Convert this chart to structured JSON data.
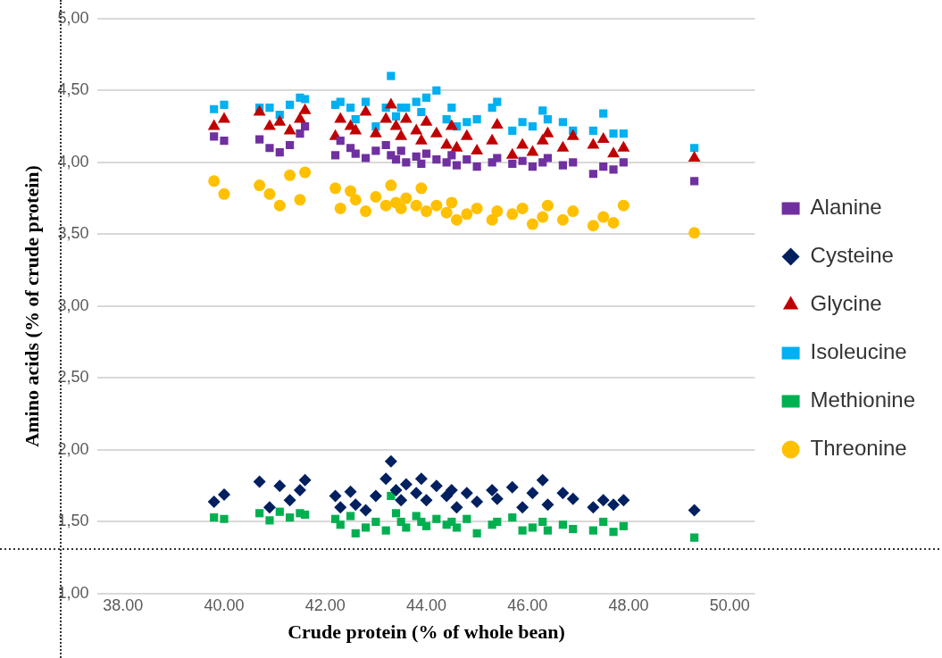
{
  "chart_data": {
    "type": "scatter",
    "xlabel": "Crude protein (% of whole bean)",
    "ylabel": "Amino acids (% of crude protein)",
    "x": [
      39.8,
      40.0,
      40.7,
      40.9,
      41.1,
      41.3,
      41.5,
      41.6,
      42.2,
      42.3,
      42.5,
      42.6,
      42.8,
      43.0,
      43.2,
      43.3,
      43.4,
      43.5,
      43.6,
      43.8,
      43.9,
      44.0,
      44.2,
      44.4,
      44.5,
      44.6,
      44.8,
      45.0,
      45.3,
      45.4,
      45.7,
      45.9,
      46.1,
      46.3,
      46.4,
      46.7,
      46.9,
      47.3,
      47.5,
      47.7,
      47.9,
      49.3
    ],
    "series": [
      {
        "name": "Alanine",
        "color": "#7030a0",
        "marker": "square",
        "values": [
          4.18,
          4.15,
          4.16,
          4.1,
          4.07,
          4.12,
          4.2,
          4.25,
          4.05,
          4.15,
          4.1,
          4.06,
          4.03,
          4.08,
          4.12,
          4.05,
          4.02,
          4.08,
          4.0,
          4.04,
          3.99,
          4.06,
          4.02,
          4.0,
          4.05,
          3.98,
          4.02,
          3.97,
          4.0,
          4.03,
          3.99,
          4.01,
          3.97,
          4.0,
          4.03,
          3.98,
          4.0,
          3.92,
          3.97,
          3.95,
          4.0,
          3.87
        ]
      },
      {
        "name": "Cysteine",
        "color": "#002060",
        "marker": "diamond",
        "values": [
          1.64,
          1.69,
          1.78,
          1.6,
          1.75,
          1.65,
          1.72,
          1.79,
          1.68,
          1.6,
          1.71,
          1.62,
          1.58,
          1.68,
          1.8,
          1.92,
          1.72,
          1.65,
          1.76,
          1.7,
          1.8,
          1.65,
          1.75,
          1.68,
          1.72,
          1.6,
          1.7,
          1.64,
          1.72,
          1.66,
          1.74,
          1.6,
          1.7,
          1.79,
          1.62,
          1.7,
          1.66,
          1.6,
          1.65,
          1.62,
          1.65,
          1.58
        ]
      },
      {
        "name": "Glycine",
        "color": "#c00000",
        "marker": "triangle",
        "values": [
          4.25,
          4.3,
          4.35,
          4.25,
          4.28,
          4.22,
          4.3,
          4.36,
          4.18,
          4.3,
          4.25,
          4.22,
          4.35,
          4.2,
          4.3,
          4.4,
          4.25,
          4.18,
          4.3,
          4.22,
          4.15,
          4.28,
          4.2,
          4.12,
          4.25,
          4.1,
          4.18,
          4.08,
          4.15,
          4.26,
          4.05,
          4.12,
          4.07,
          4.15,
          4.2,
          4.1,
          4.18,
          4.12,
          4.16,
          4.06,
          4.1,
          4.03
        ]
      },
      {
        "name": "Isoleucine",
        "color": "#00b0f0",
        "marker": "square",
        "values": [
          4.37,
          4.4,
          4.38,
          4.38,
          4.33,
          4.4,
          4.45,
          4.44,
          4.4,
          4.42,
          4.38,
          4.3,
          4.42,
          4.25,
          4.38,
          4.6,
          4.32,
          4.38,
          4.38,
          4.42,
          4.35,
          4.45,
          4.5,
          4.3,
          4.38,
          4.25,
          4.28,
          4.3,
          4.38,
          4.42,
          4.22,
          4.28,
          4.25,
          4.36,
          4.3,
          4.28,
          4.22,
          4.22,
          4.34,
          4.2,
          4.2,
          4.1
        ]
      },
      {
        "name": "Methionine",
        "color": "#00b050",
        "marker": "square",
        "values": [
          1.53,
          1.52,
          1.56,
          1.51,
          1.57,
          1.53,
          1.56,
          1.55,
          1.52,
          1.48,
          1.54,
          1.42,
          1.46,
          1.5,
          1.44,
          1.68,
          1.56,
          1.5,
          1.46,
          1.54,
          1.5,
          1.47,
          1.52,
          1.48,
          1.5,
          1.46,
          1.52,
          1.42,
          1.48,
          1.5,
          1.53,
          1.44,
          1.46,
          1.5,
          1.44,
          1.48,
          1.45,
          1.44,
          1.5,
          1.43,
          1.47,
          1.39
        ]
      },
      {
        "name": "Threonine",
        "color": "#ffc000",
        "marker": "circle",
        "values": [
          3.87,
          3.78,
          3.84,
          3.78,
          3.7,
          3.91,
          3.74,
          3.93,
          3.82,
          3.68,
          3.8,
          3.74,
          3.66,
          3.76,
          3.7,
          3.84,
          3.72,
          3.68,
          3.75,
          3.7,
          3.82,
          3.66,
          3.7,
          3.65,
          3.72,
          3.6,
          3.64,
          3.68,
          3.6,
          3.66,
          3.64,
          3.68,
          3.57,
          3.62,
          3.7,
          3.6,
          3.66,
          3.56,
          3.62,
          3.58,
          3.7,
          3.51
        ]
      }
    ],
    "xlim": [
      37.5,
      50.5
    ],
    "xticks": [
      {
        "value": 38,
        "label": "38.00"
      },
      {
        "value": 40,
        "label": "40.00"
      },
      {
        "value": 42,
        "label": "42.00"
      },
      {
        "value": 44,
        "label": "44.00"
      },
      {
        "value": 46,
        "label": "46.00"
      },
      {
        "value": 48,
        "label": "48.00"
      },
      {
        "value": 50,
        "label": "50.00"
      }
    ],
    "ylim": [
      1,
      5
    ],
    "yticks": [
      {
        "value": 1,
        "label": "1,00"
      },
      {
        "value": 1.5,
        "label": "1,50"
      },
      {
        "value": 2,
        "label": "2,00"
      },
      {
        "value": 2.5,
        "label": "2,50"
      },
      {
        "value": 3,
        "label": "3,00"
      },
      {
        "value": 3.5,
        "label": "3,50"
      },
      {
        "value": 4,
        "label": "4,00"
      },
      {
        "value": 4.5,
        "label": "4,50"
      },
      {
        "value": 5,
        "label": "5,00"
      }
    ],
    "ref_lines": [
      {
        "axis": "y",
        "value": 1.31,
        "line_style": "dotted",
        "color": "#333333"
      }
    ],
    "grid": "y",
    "legend": "right"
  }
}
